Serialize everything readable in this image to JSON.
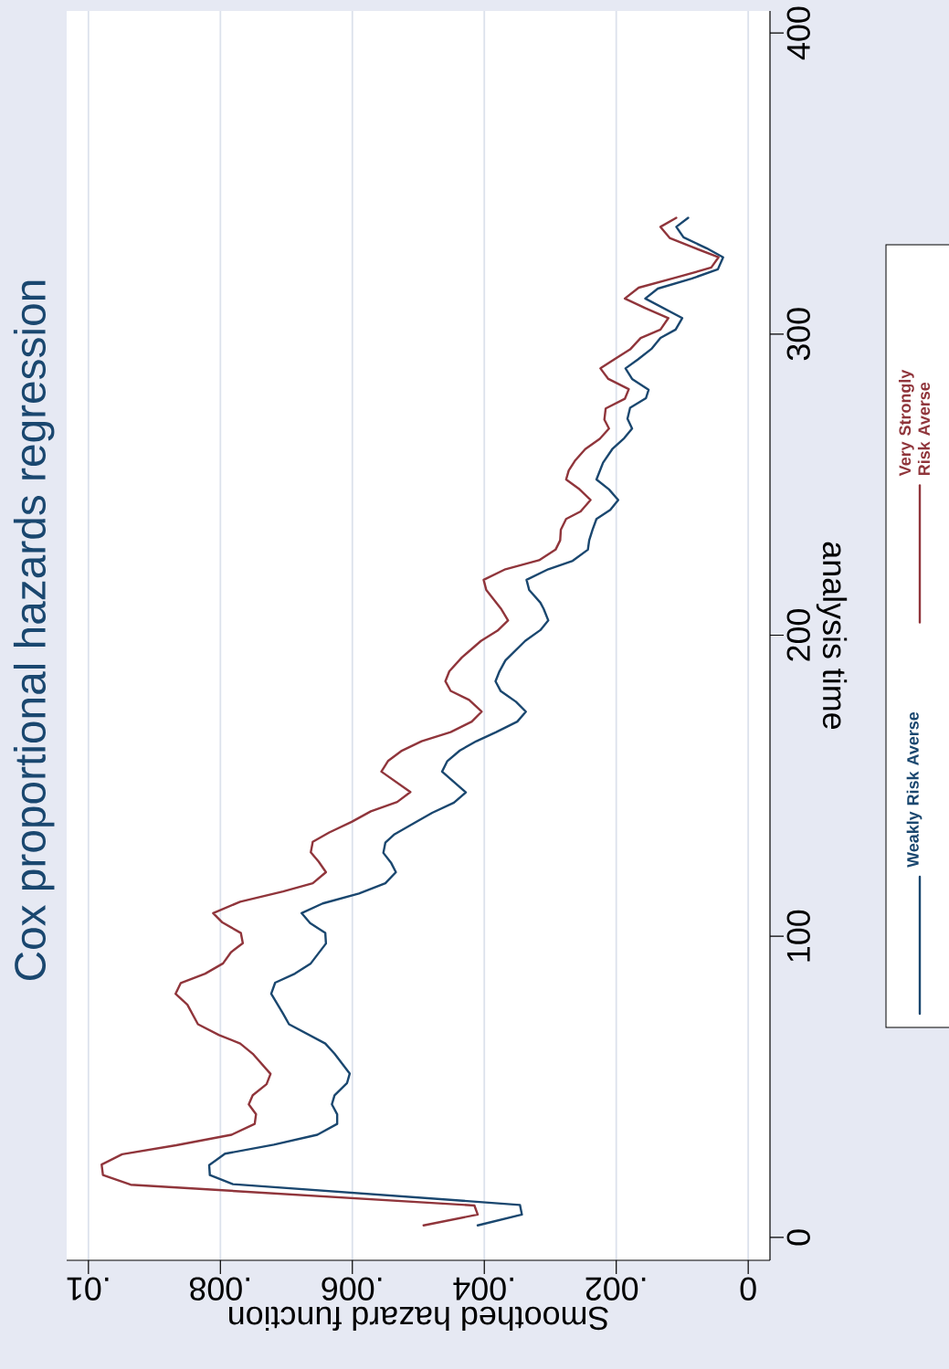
{
  "chart_data": {
    "type": "line",
    "orientation": "horizontal",
    "title": "Cox proportional hazards regression",
    "xlabel": "Smoothed hazard function",
    "ylabel": "analysis time",
    "xlim": [
      0.01033,
      -0.00033
    ],
    "ylim": [
      -7.6,
      407.3
    ],
    "xticks": [
      {
        "value": 0.01,
        "label": ".01"
      },
      {
        "value": 0.008,
        "label": ".008"
      },
      {
        "value": 0.006,
        "label": ".006"
      },
      {
        "value": 0.004,
        "label": ".004"
      },
      {
        "value": 0.002,
        "label": ".002"
      },
      0
    ],
    "yticks": [
      0,
      100,
      200,
      300,
      400
    ],
    "grid": "x",
    "legend": "right",
    "series": [
      {
        "name": "Weakly Risk Averse",
        "color": "#1a476f",
        "x": [
          4,
          7.6,
          10.8,
          17.7,
          20.7,
          24,
          27.8,
          30.8,
          34.1,
          37.7,
          40.9,
          44.2,
          47.2,
          51.3,
          54.4,
          61,
          64.4,
          70.8,
          74.3,
          80.9,
          84.6,
          87.6,
          91,
          97.6,
          101.1,
          104.4,
          107.7,
          110.9,
          114.2,
          117.6,
          121.3,
          124.3,
          127.7,
          131.1,
          133.9,
          137.5,
          141,
          144.4,
          147.8,
          154.7,
          158.2,
          161.7,
          164.8,
          167.8,
          171.3,
          174.6,
          177.9,
          181.4,
          184.7,
          188,
          191.6,
          198.1,
          201.7,
          204.9,
          208.7,
          210.8,
          215,
          218.4,
          221.9,
          224.7,
          228.4,
          231.5,
          235,
          238.6,
          241.6,
          244.9,
          248.4,
          251.7,
          257.3,
          261.8,
          265.4,
          268.6,
          271.9,
          275.5,
          278.7,
          281.5,
          285.1,
          288.6,
          291.6,
          295.2,
          298.7,
          301.5,
          305.3,
          311.8,
          315.1,
          318.4,
          321.5,
          325.5,
          328.5,
          332.1,
          335.6,
          338.6
        ],
        "values": [
          0.0041,
          0.00343,
          0.00346,
          0.00781,
          0.00816,
          0.00817,
          0.00793,
          0.00719,
          0.00653,
          0.00623,
          0.00623,
          0.00631,
          0.00627,
          0.00608,
          0.00604,
          0.00627,
          0.00641,
          0.00696,
          0.00705,
          0.00723,
          0.00717,
          0.00687,
          0.00663,
          0.0064,
          0.00641,
          0.00664,
          0.00677,
          0.00645,
          0.0059,
          0.0055,
          0.00534,
          0.00541,
          0.00553,
          0.0055,
          0.00536,
          0.00507,
          0.00479,
          0.00446,
          0.00428,
          0.00464,
          0.00456,
          0.00437,
          0.00412,
          0.00382,
          0.0035,
          0.00337,
          0.00352,
          0.00375,
          0.00383,
          0.00377,
          0.00368,
          0.00338,
          0.00315,
          0.00303,
          0.0031,
          0.00315,
          0.00332,
          0.00336,
          0.00303,
          0.00266,
          0.00243,
          0.00241,
          0.00236,
          0.0023,
          0.00209,
          0.00197,
          0.00211,
          0.0023,
          0.0022,
          0.00206,
          0.00188,
          0.00176,
          0.00183,
          0.00179,
          0.00155,
          0.00151,
          0.00176,
          0.00186,
          0.00167,
          0.00146,
          0.00133,
          0.0011,
          0.001,
          0.00156,
          0.00137,
          0.00086,
          0.00046,
          0.00038,
          0.00063,
          0.00098,
          0.00109,
          0.00091
        ]
      },
      {
        "name": "Very Strongly Risk Averse",
        "color": "#90353b",
        "x": [
          4,
          7.6,
          10.6,
          17.5,
          20.7,
          24.2,
          27.6,
          30.6,
          34.1,
          37.7,
          40.9,
          44.2,
          47.2,
          50.9,
          54.3,
          61,
          64.4,
          67.2,
          70.8,
          77.3,
          80.9,
          84.5,
          87.6,
          91,
          94.7,
          97.7,
          101.1,
          104.6,
          107.7,
          111.5,
          114.9,
          117.6,
          121.3,
          124.8,
          127.9,
          131.4,
          134.5,
          138,
          141.5,
          144.6,
          147.9,
          154.7,
          158.2,
          161.5,
          164.8,
          167.8,
          171.3,
          174.6,
          178.5,
          181.5,
          184.7,
          188,
          192.6,
          198.1,
          201.5,
          204.9,
          208.9,
          215,
          218.4,
          221.9,
          224.9,
          228.4,
          231.5,
          235,
          238.6,
          241.1,
          244.9,
          248.7,
          251.7,
          254.7,
          258.1,
          261.8,
          265.2,
          268.6,
          271.6,
          275.3,
          278.5,
          281.7,
          285.1,
          288.6,
          291.6,
          294.9,
          298.7,
          301.5,
          305.3,
          308.6,
          311.8,
          315.4,
          318.9,
          322.1,
          325.5,
          329,
          331.9,
          335.6,
          338.6
        ],
        "values": [
          0.00492,
          0.0041,
          0.00415,
          0.00936,
          0.00978,
          0.0098,
          0.00949,
          0.00867,
          0.00783,
          0.00748,
          0.00746,
          0.00757,
          0.00751,
          0.0073,
          0.00724,
          0.00751,
          0.0077,
          0.00802,
          0.00834,
          0.0085,
          0.00868,
          0.0086,
          0.00823,
          0.00796,
          0.00784,
          0.00766,
          0.00769,
          0.00797,
          0.00811,
          0.0077,
          0.00705,
          0.0066,
          0.0064,
          0.00651,
          0.00663,
          0.0066,
          0.00635,
          0.00601,
          0.00572,
          0.00532,
          0.00512,
          0.00556,
          0.00546,
          0.00526,
          0.00495,
          0.00451,
          0.00419,
          0.00404,
          0.00423,
          0.00451,
          0.00459,
          0.00453,
          0.00434,
          0.00405,
          0.0038,
          0.00364,
          0.00375,
          0.00397,
          0.00401,
          0.00368,
          0.00317,
          0.00292,
          0.00285,
          0.00284,
          0.00276,
          0.00254,
          0.00239,
          0.00257,
          0.00276,
          0.00272,
          0.00262,
          0.00247,
          0.00225,
          0.00211,
          0.00218,
          0.00216,
          0.00187,
          0.00181,
          0.00212,
          0.00224,
          0.00203,
          0.00179,
          0.00163,
          0.00133,
          0.00121,
          0.00156,
          0.00187,
          0.00166,
          0.00107,
          0.00056,
          0.00045,
          0.00086,
          0.00119,
          0.00133,
          0.00109
        ]
      }
    ]
  }
}
